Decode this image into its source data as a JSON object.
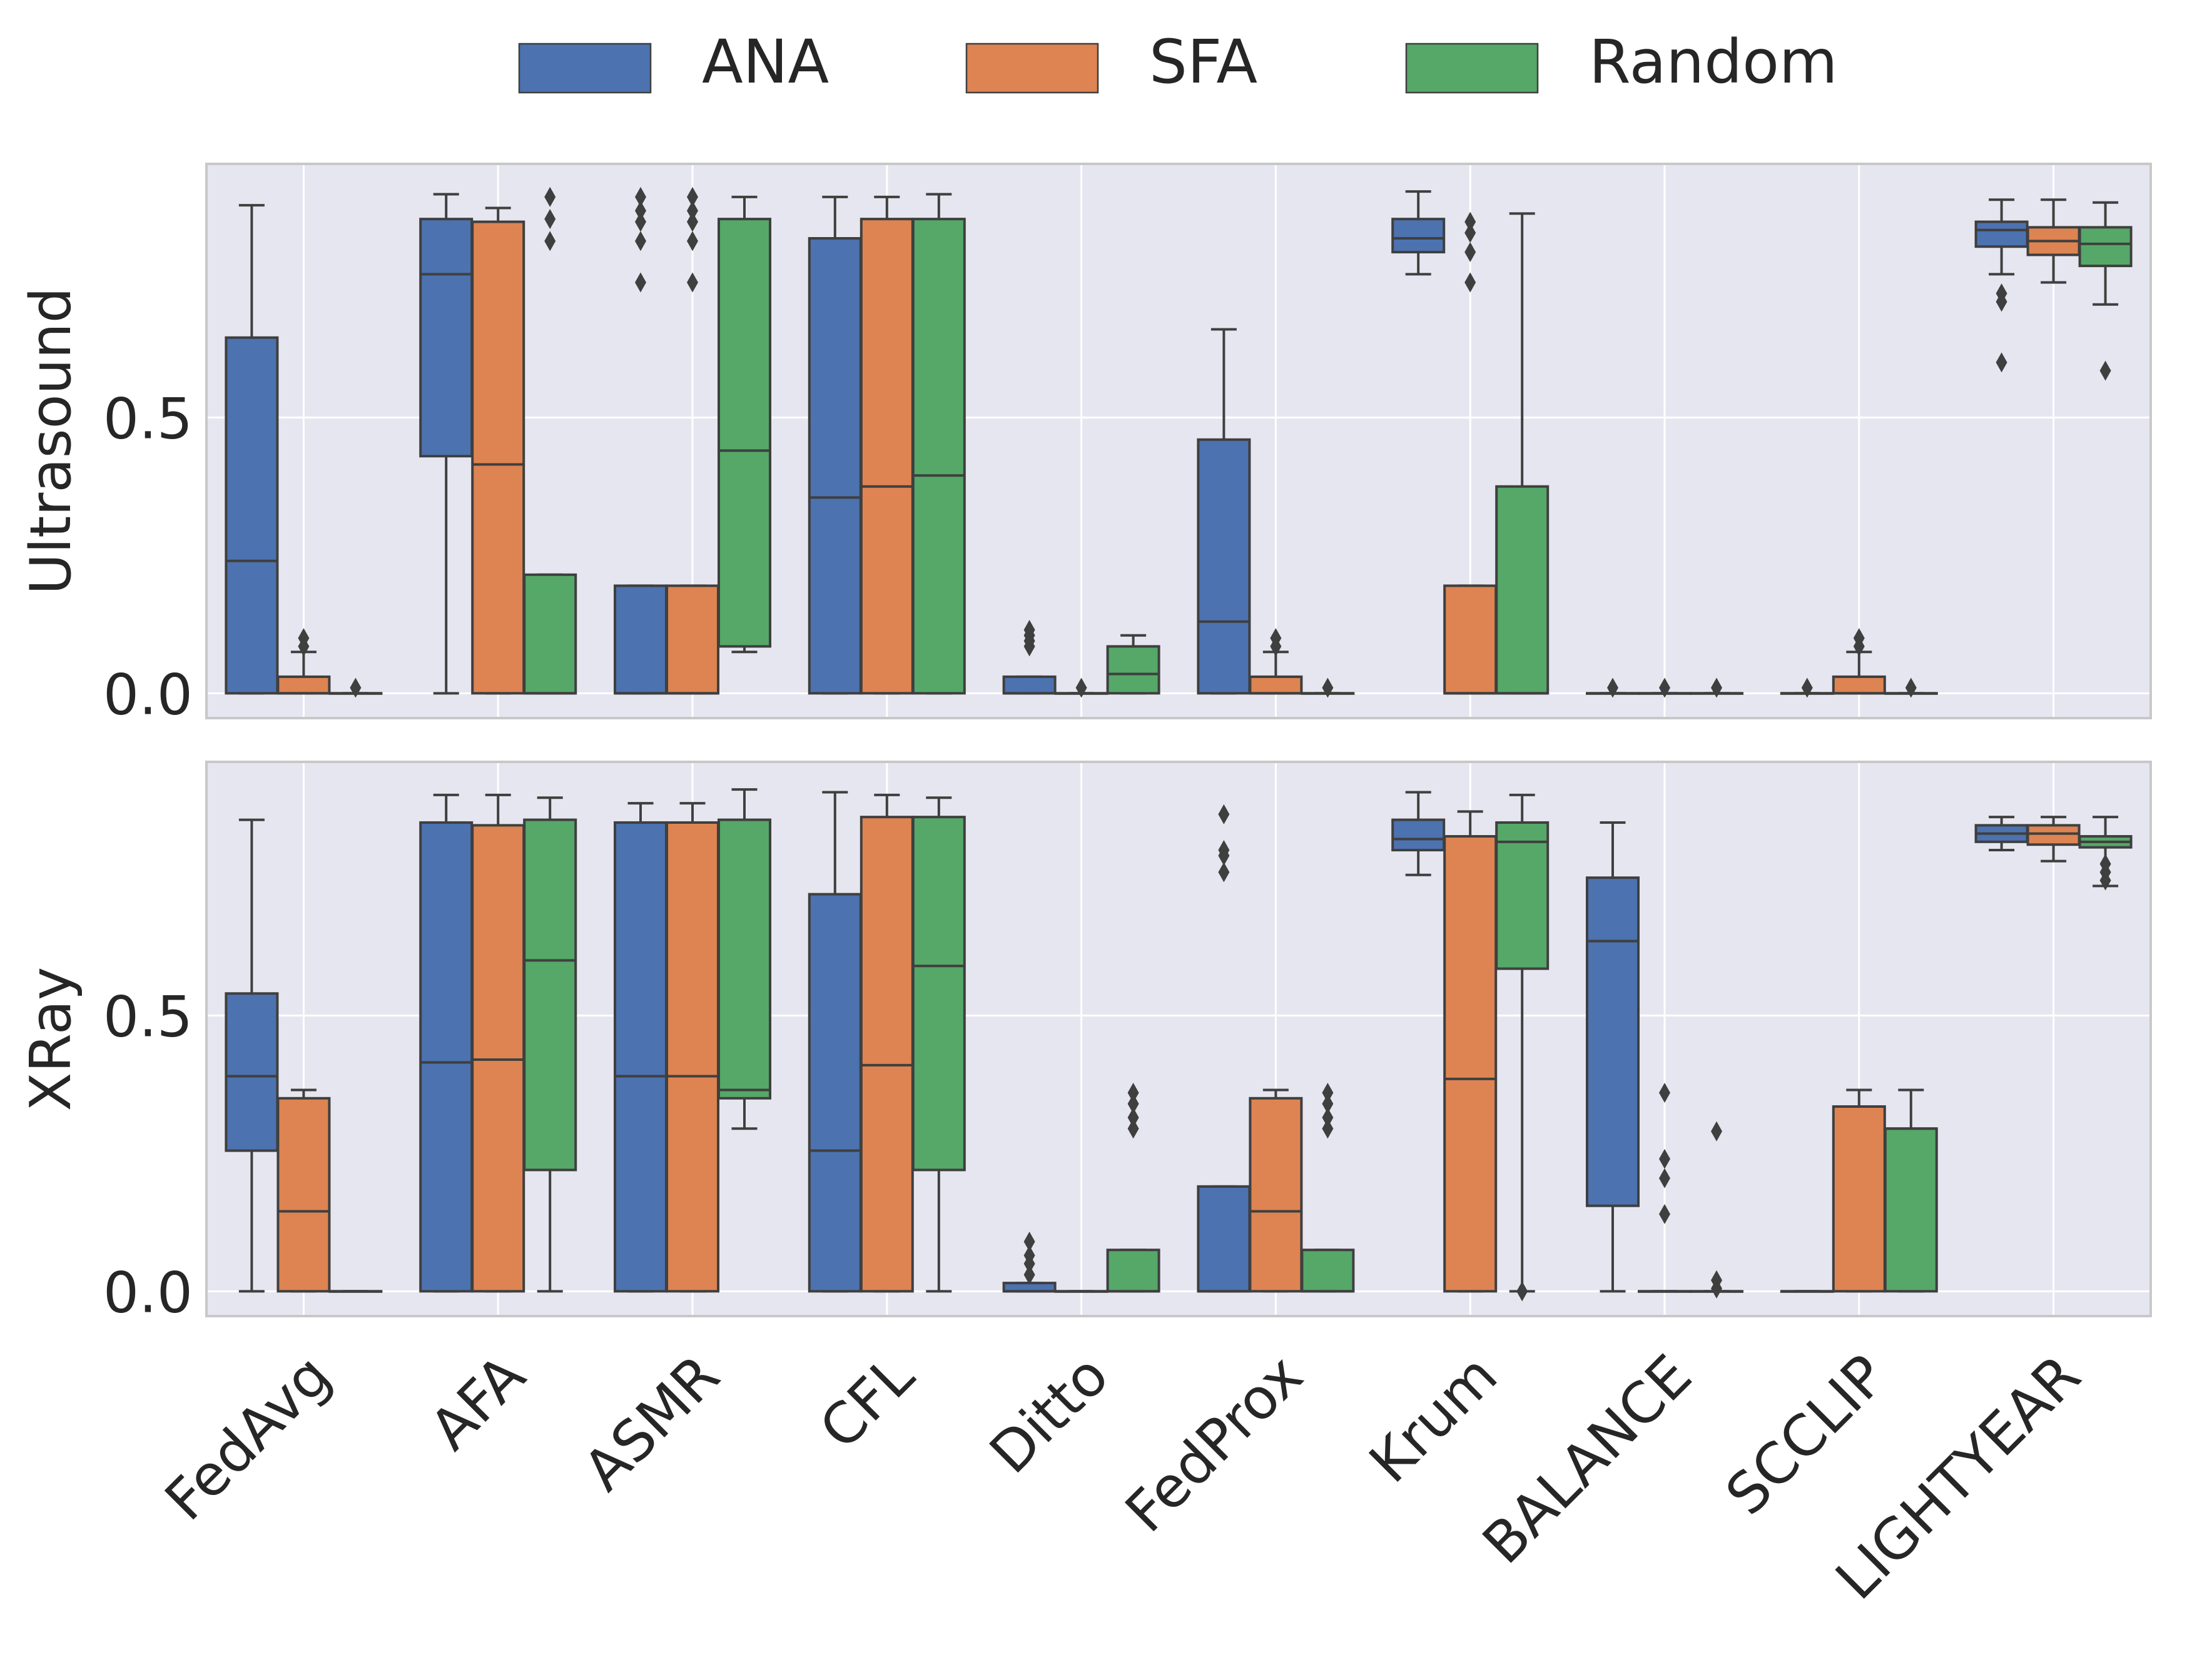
{
  "chart_data": {
    "type": "boxplot",
    "legend": {
      "placement": "top-center",
      "entries": [
        {
          "name": "ANA",
          "color": "#4c72b0"
        },
        {
          "name": "SFA",
          "color": "#dd8452"
        },
        {
          "name": "Random",
          "color": "#55a868"
        }
      ]
    },
    "categories": [
      "FedAvg",
      "AFA",
      "ASMR",
      "CFL",
      "Ditto",
      "FedProx",
      "Krum",
      "BALANCE",
      "SCCLIP",
      "LIGHTYEAR"
    ],
    "series_order": [
      "ANA",
      "SFA",
      "Random"
    ],
    "panels": [
      {
        "ylabel": "Ultrasound",
        "ylim": [
          -0.045,
          0.96
        ],
        "yticks": [
          0.0,
          0.5
        ],
        "ytick_labels": [
          "0.0",
          "0.5"
        ],
        "boxes": [
          [
            {
              "q1": 0,
              "med": 0.24,
              "q3": 0.645,
              "wlo": 0,
              "whi": 0.885,
              "out": []
            },
            {
              "q1": 0,
              "med": 0,
              "q3": 0.03,
              "wlo": 0,
              "whi": 0.075,
              "out": [
                0.085,
                0.1
              ]
            },
            {
              "q1": 0,
              "med": 0,
              "q3": 0,
              "wlo": 0,
              "whi": 0,
              "out": [
                0.01
              ]
            }
          ],
          [
            {
              "q1": 0.43,
              "med": 0.76,
              "q3": 0.86,
              "wlo": 0,
              "whi": 0.905,
              "out": []
            },
            {
              "q1": 0,
              "med": 0.415,
              "q3": 0.855,
              "wlo": 0,
              "whi": 0.88,
              "out": []
            },
            {
              "q1": 0,
              "med": 0,
              "q3": 0.215,
              "wlo": 0,
              "whi": 0.215,
              "out": [
                0.82,
                0.86,
                0.9
              ]
            }
          ],
          [
            {
              "q1": 0,
              "med": 0,
              "q3": 0.195,
              "wlo": 0,
              "whi": 0.195,
              "out": [
                0.745,
                0.82,
                0.855,
                0.875,
                0.9
              ]
            },
            {
              "q1": 0,
              "med": 0,
              "q3": 0.195,
              "wlo": 0,
              "whi": 0.195,
              "out": [
                0.745,
                0.82,
                0.855,
                0.875,
                0.9
              ]
            },
            {
              "q1": 0.085,
              "med": 0.44,
              "q3": 0.86,
              "wlo": 0.075,
              "whi": 0.9,
              "out": []
            }
          ],
          [
            {
              "q1": 0,
              "med": 0.355,
              "q3": 0.825,
              "wlo": 0,
              "whi": 0.9,
              "out": []
            },
            {
              "q1": 0,
              "med": 0.375,
              "q3": 0.86,
              "wlo": 0,
              "whi": 0.9,
              "out": []
            },
            {
              "q1": 0,
              "med": 0.395,
              "q3": 0.86,
              "wlo": 0,
              "whi": 0.905,
              "out": []
            }
          ],
          [
            {
              "q1": 0,
              "med": 0,
              "q3": 0.03,
              "wlo": 0,
              "whi": 0.03,
              "out": [
                0.085,
                0.095,
                0.105,
                0.115
              ]
            },
            {
              "q1": 0,
              "med": 0,
              "q3": 0,
              "wlo": 0,
              "whi": 0,
              "out": [
                0.01
              ]
            },
            {
              "q1": 0,
              "med": 0.035,
              "q3": 0.085,
              "wlo": 0,
              "whi": 0.105,
              "out": []
            }
          ],
          [
            {
              "q1": 0,
              "med": 0.13,
              "q3": 0.46,
              "wlo": 0,
              "whi": 0.66,
              "out": []
            },
            {
              "q1": 0,
              "med": 0,
              "q3": 0.03,
              "wlo": 0,
              "whi": 0.075,
              "out": [
                0.085,
                0.1
              ]
            },
            {
              "q1": 0,
              "med": 0,
              "q3": 0,
              "wlo": 0,
              "whi": 0,
              "out": [
                0.01
              ]
            }
          ],
          [
            {
              "q1": 0.8,
              "med": 0.825,
              "q3": 0.86,
              "wlo": 0.76,
              "whi": 0.91,
              "out": []
            },
            {
              "q1": 0,
              "med": 0,
              "q3": 0.195,
              "wlo": 0,
              "whi": 0.195,
              "out": [
                0.745,
                0.8,
                0.835,
                0.855
              ]
            },
            {
              "q1": 0,
              "med": 0,
              "q3": 0.375,
              "wlo": 0,
              "whi": 0.87,
              "out": []
            }
          ],
          [
            {
              "q1": 0,
              "med": 0,
              "q3": 0,
              "wlo": 0,
              "whi": 0,
              "out": [
                0.01
              ]
            },
            {
              "q1": 0,
              "med": 0,
              "q3": 0,
              "wlo": 0,
              "whi": 0,
              "out": [
                0.01
              ]
            },
            {
              "q1": 0,
              "med": 0,
              "q3": 0,
              "wlo": 0,
              "whi": 0,
              "out": [
                0.01
              ]
            }
          ],
          [
            {
              "q1": 0,
              "med": 0,
              "q3": 0,
              "wlo": 0,
              "whi": 0,
              "out": [
                0.01
              ]
            },
            {
              "q1": 0,
              "med": 0,
              "q3": 0.03,
              "wlo": 0,
              "whi": 0.075,
              "out": [
                0.085,
                0.1
              ]
            },
            {
              "q1": 0,
              "med": 0,
              "q3": 0,
              "wlo": 0,
              "whi": 0,
              "out": [
                0.01
              ]
            }
          ],
          [
            {
              "q1": 0.81,
              "med": 0.84,
              "q3": 0.855,
              "wlo": 0.76,
              "whi": 0.895,
              "out": [
                0.6,
                0.71,
                0.725
              ]
            },
            {
              "q1": 0.795,
              "med": 0.82,
              "q3": 0.845,
              "wlo": 0.745,
              "whi": 0.895,
              "out": []
            },
            {
              "q1": 0.775,
              "med": 0.815,
              "q3": 0.845,
              "wlo": 0.705,
              "whi": 0.89,
              "out": [
                0.585
              ]
            }
          ]
        ]
      },
      {
        "ylabel": "XRay",
        "ylim": [
          -0.045,
          0.96
        ],
        "yticks": [
          0.0,
          0.5
        ],
        "ytick_labels": [
          "0.0",
          "0.5"
        ],
        "boxes": [
          [
            {
              "q1": 0.255,
              "med": 0.39,
              "q3": 0.54,
              "wlo": 0,
              "whi": 0.855,
              "out": []
            },
            {
              "q1": 0,
              "med": 0.145,
              "q3": 0.35,
              "wlo": 0,
              "whi": 0.365,
              "out": []
            },
            {
              "q1": 0,
              "med": 0,
              "q3": 0,
              "wlo": 0,
              "whi": 0,
              "out": []
            }
          ],
          [
            {
              "q1": 0,
              "med": 0.415,
              "q3": 0.85,
              "wlo": 0,
              "whi": 0.9,
              "out": []
            },
            {
              "q1": 0,
              "med": 0.42,
              "q3": 0.845,
              "wlo": 0,
              "whi": 0.9,
              "out": []
            },
            {
              "q1": 0.22,
              "med": 0.6,
              "q3": 0.855,
              "wlo": 0,
              "whi": 0.895,
              "out": []
            }
          ],
          [
            {
              "q1": 0,
              "med": 0.39,
              "q3": 0.85,
              "wlo": 0,
              "whi": 0.885,
              "out": []
            },
            {
              "q1": 0,
              "med": 0.39,
              "q3": 0.85,
              "wlo": 0,
              "whi": 0.885,
              "out": []
            },
            {
              "q1": 0.35,
              "med": 0.365,
              "q3": 0.855,
              "wlo": 0.295,
              "whi": 0.91,
              "out": []
            }
          ],
          [
            {
              "q1": 0,
              "med": 0.255,
              "q3": 0.72,
              "wlo": 0,
              "whi": 0.905,
              "out": []
            },
            {
              "q1": 0,
              "med": 0.41,
              "q3": 0.86,
              "wlo": 0,
              "whi": 0.9,
              "out": []
            },
            {
              "q1": 0.22,
              "med": 0.59,
              "q3": 0.86,
              "wlo": 0,
              "whi": 0.895,
              "out": []
            }
          ],
          [
            {
              "q1": 0,
              "med": 0,
              "q3": 0.015,
              "wlo": 0,
              "whi": 0.015,
              "out": [
                0.03,
                0.05,
                0.065,
                0.09
              ]
            },
            {
              "q1": 0,
              "med": 0,
              "q3": 0,
              "wlo": 0,
              "whi": 0,
              "out": []
            },
            {
              "q1": 0,
              "med": 0,
              "q3": 0.075,
              "wlo": 0,
              "whi": 0.075,
              "out": [
                0.295,
                0.315,
                0.34,
                0.36
              ]
            }
          ],
          [
            {
              "q1": 0,
              "med": 0,
              "q3": 0.19,
              "wlo": 0,
              "whi": 0.19,
              "out": [
                0.76,
                0.79,
                0.8,
                0.865
              ]
            },
            {
              "q1": 0,
              "med": 0.145,
              "q3": 0.35,
              "wlo": 0,
              "whi": 0.365,
              "out": []
            },
            {
              "q1": 0,
              "med": 0,
              "q3": 0.075,
              "wlo": 0,
              "whi": 0.075,
              "out": [
                0.295,
                0.315,
                0.34,
                0.36
              ]
            }
          ],
          [
            {
              "q1": 0.8,
              "med": 0.82,
              "q3": 0.855,
              "wlo": 0.755,
              "whi": 0.905,
              "out": []
            },
            {
              "q1": 0,
              "med": 0.385,
              "q3": 0.825,
              "wlo": 0,
              "whi": 0.87,
              "out": []
            },
            {
              "q1": 0.585,
              "med": 0.815,
              "q3": 0.85,
              "wlo": 0,
              "whi": 0.9,
              "out": [
                0
              ]
            }
          ],
          [
            {
              "q1": 0.155,
              "med": 0.635,
              "q3": 0.75,
              "wlo": 0,
              "whi": 0.85,
              "out": []
            },
            {
              "q1": 0,
              "med": 0,
              "q3": 0,
              "wlo": 0,
              "whi": 0,
              "out": [
                0.14,
                0.205,
                0.24,
                0.36
              ]
            },
            {
              "q1": 0,
              "med": 0,
              "q3": 0,
              "wlo": 0,
              "whi": 0,
              "out": [
                0.005,
                0.02,
                0.29
              ]
            }
          ],
          [
            {
              "q1": 0,
              "med": 0,
              "q3": 0,
              "wlo": 0,
              "whi": 0,
              "out": []
            },
            {
              "q1": 0,
              "med": 0.335,
              "q3": 0.335,
              "wlo": 0,
              "whi": 0.365,
              "out": []
            },
            {
              "q1": 0,
              "med": 0.295,
              "q3": 0.295,
              "wlo": 0,
              "whi": 0.365,
              "out": []
            }
          ],
          [
            {
              "q1": 0.815,
              "med": 0.83,
              "q3": 0.845,
              "wlo": 0.8,
              "whi": 0.86,
              "out": []
            },
            {
              "q1": 0.81,
              "med": 0.83,
              "q3": 0.845,
              "wlo": 0.78,
              "whi": 0.86,
              "out": []
            },
            {
              "q1": 0.805,
              "med": 0.815,
              "q3": 0.825,
              "wlo": 0.735,
              "whi": 0.86,
              "out": [
                0.745,
                0.76,
                0.775
              ]
            }
          ]
        ]
      }
    ]
  }
}
